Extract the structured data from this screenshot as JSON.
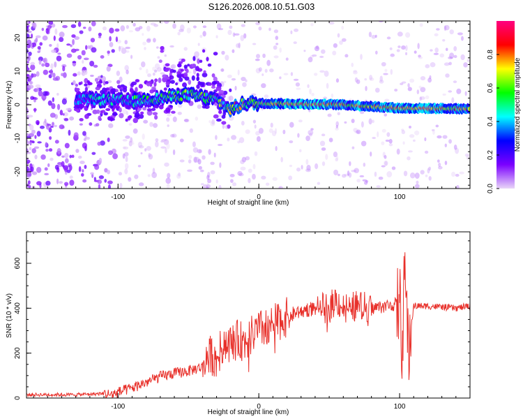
{
  "title": "S126.2026.008.10.51.G03",
  "chart_data": [
    {
      "type": "heatmap",
      "name": "spectrogram",
      "title": "S126.2026.008.10.51.G03",
      "xlabel": "Height of straight line (km)",
      "ylabel": "Frequency (Hz)",
      "xlim": [
        -165,
        150
      ],
      "ylim": [
        -25,
        25
      ],
      "xticks": [
        -100,
        0,
        100
      ],
      "yticks": [
        -20,
        -10,
        0,
        10,
        20
      ],
      "colorbar": {
        "label": "Normalized spectral amplitude",
        "range": [
          0,
          1
        ],
        "ticks": [
          0.0,
          0.2,
          0.4,
          0.6,
          0.8
        ],
        "tick_labels": [
          "0.0",
          "0.2",
          "0.4",
          "0.6",
          "0.8"
        ],
        "colormap": [
          "#e9d6f8",
          "#7b00ff",
          "#0000ff",
          "#00ffff",
          "#00ff00",
          "#ffff00",
          "#ff0000",
          "#ff0080"
        ]
      },
      "ridge": [
        {
          "x": -110,
          "f": 1.5,
          "amp": 0.45
        },
        {
          "x": -90,
          "f": 1.0,
          "amp": 0.5
        },
        {
          "x": -70,
          "f": 2.0,
          "amp": 0.55
        },
        {
          "x": -50,
          "f": 3.0,
          "amp": 0.6
        },
        {
          "x": -30,
          "f": 1.5,
          "amp": 0.55
        },
        {
          "x": -20,
          "f": -1.5,
          "amp": 0.7
        },
        {
          "x": -10,
          "f": 0.5,
          "amp": 0.7
        },
        {
          "x": 20,
          "f": 0.3,
          "amp": 0.9
        },
        {
          "x": 60,
          "f": 0.0,
          "amp": 0.8
        },
        {
          "x": 100,
          "f": -1.0,
          "amp": 0.9
        },
        {
          "x": 148,
          "f": -1.2,
          "amp": 0.75
        }
      ]
    },
    {
      "type": "line",
      "name": "snr",
      "xlabel": "Height of straight line (km)",
      "ylabel": "SNR (10 * v/v)",
      "xlim": [
        -165,
        150
      ],
      "ylim": [
        0,
        740
      ],
      "xticks": [
        -100,
        0,
        100
      ],
      "yticks": [
        0,
        200,
        400,
        600
      ],
      "color": "#e8302a",
      "series": [
        {
          "name": "SNR",
          "x": [
            -165,
            -150,
            -130,
            -110,
            -105,
            -100,
            -90,
            -80,
            -70,
            -60,
            -50,
            -40,
            -35,
            -30,
            -25,
            -20,
            -15,
            -10,
            -5,
            0,
            10,
            20,
            30,
            40,
            50,
            55,
            60,
            70,
            80,
            90,
            100,
            102,
            104,
            106,
            110,
            120,
            130,
            140,
            150
          ],
          "y": [
            15,
            15,
            15,
            20,
            15,
            25,
            45,
            70,
            95,
            110,
            120,
            140,
            200,
            170,
            250,
            240,
            260,
            250,
            280,
            300,
            330,
            360,
            390,
            400,
            400,
            440,
            400,
            410,
            400,
            410,
            420,
            250,
            600,
            200,
            410,
            410,
            405,
            400,
            410
          ]
        }
      ]
    }
  ]
}
